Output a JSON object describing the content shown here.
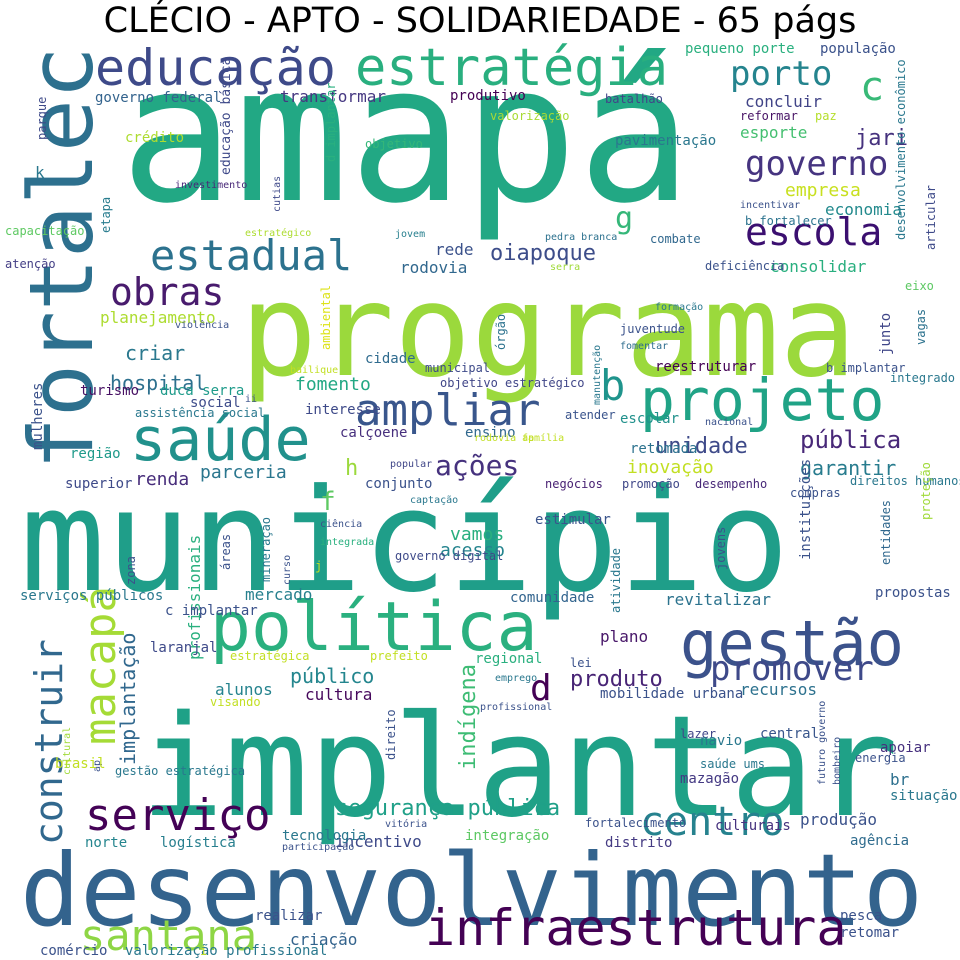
{
  "title": "CLÉCIO - APTO - SOLIDARIEDADE - 65 págs",
  "palette": [
    "#440154",
    "#46327e",
    "#365c8d",
    "#277f8e",
    "#1fa187",
    "#4ac16d",
    "#a0da39",
    "#fde725"
  ],
  "words": [
    {
      "text": "amapá",
      "c": "#22a884"
    },
    {
      "text": "município",
      "c": "#1f9e89"
    },
    {
      "text": "implantar",
      "c": "#1fa187"
    },
    {
      "text": "programa",
      "c": "#9bd93c"
    },
    {
      "text": "desenvolvimento",
      "c": "#33638d"
    },
    {
      "text": "fortalecer",
      "c": "#2d708e"
    },
    {
      "text": "política",
      "c": "#2ab07f"
    },
    {
      "text": "gestão",
      "c": "#3b528b"
    },
    {
      "text": "projeto",
      "c": "#20a386"
    },
    {
      "text": "saúde",
      "c": "#21918c"
    },
    {
      "text": "educação",
      "c": "#3e4a89"
    },
    {
      "text": "estratégia",
      "c": "#29af7f"
    },
    {
      "text": "infraestrutura",
      "c": "#440154"
    },
    {
      "text": "ampliar",
      "c": "#39568c"
    },
    {
      "text": "estadual",
      "c": "#2c728e"
    },
    {
      "text": "escola",
      "c": "#3b0f70"
    },
    {
      "text": "macapá",
      "c": "#a5db36"
    },
    {
      "text": "serviço",
      "c": "#440256"
    },
    {
      "text": "santana",
      "c": "#8ed645"
    },
    {
      "text": "centro",
      "c": "#26828e"
    },
    {
      "text": "construir",
      "c": "#31688e"
    },
    {
      "text": "promover",
      "c": "#3e4989"
    },
    {
      "text": "obras",
      "c": "#481b6d"
    },
    {
      "text": "governo",
      "c": "#463480"
    },
    {
      "text": "porto",
      "c": "#25848e"
    },
    {
      "text": "c",
      "c": "#38b977"
    },
    {
      "text": "b",
      "c": "#1f948c"
    },
    {
      "text": "g",
      "c": "#35b779"
    },
    {
      "text": "d",
      "c": "#440154"
    },
    {
      "text": "f",
      "c": "#5ec962"
    },
    {
      "text": "h",
      "c": "#9bd93c"
    },
    {
      "text": "ações",
      "c": "#46327e"
    },
    {
      "text": "pública",
      "c": "#482878"
    },
    {
      "text": "segurança pública",
      "c": "#1fa088"
    },
    {
      "text": "oiapoque",
      "c": "#3d4d8a"
    },
    {
      "text": "hospital",
      "c": "#2d708e"
    },
    {
      "text": "produto",
      "c": "#482475"
    },
    {
      "text": "público",
      "c": "#24868e"
    },
    {
      "text": "indígena",
      "c": "#3dbc74"
    },
    {
      "text": "implantação",
      "c": "#31688e"
    },
    {
      "text": "unidade",
      "c": "#3e4a89"
    },
    {
      "text": "inovação",
      "c": "#c2df23"
    },
    {
      "text": "garantir",
      "c": "#287c8e"
    },
    {
      "text": "parceria",
      "c": "#2a768e"
    },
    {
      "text": "criar",
      "c": "#2a788e"
    },
    {
      "text": "fomento",
      "c": "#22a884"
    },
    {
      "text": "empresa",
      "c": "#c8e020"
    },
    {
      "text": "jari",
      "c": "#46327e"
    },
    {
      "text": "esporte",
      "c": "#44bf70"
    },
    {
      "text": "concluir",
      "c": "#414487"
    },
    {
      "text": "economia",
      "c": "#238a8d"
    },
    {
      "text": "consolidar",
      "c": "#29af7f"
    },
    {
      "text": "rede",
      "c": "#3b528b"
    },
    {
      "text": "rodovia",
      "c": "#31688e"
    },
    {
      "text": "planejamento",
      "c": "#addc30"
    },
    {
      "text": "profissionais",
      "c": "#2ab07f"
    },
    {
      "text": "transformar",
      "c": "#453781"
    },
    {
      "text": "governo federal",
      "c": "#33638d"
    },
    {
      "text": "vamos",
      "c": "#29af7f"
    },
    {
      "text": "acesso",
      "c": "#25848e"
    },
    {
      "text": "renda",
      "c": "#472d7b"
    },
    {
      "text": "cultura",
      "c": "#46085c"
    },
    {
      "text": "alunos",
      "c": "#25838e"
    },
    {
      "text": "recursos",
      "c": "#2c718e"
    },
    {
      "text": "plano",
      "c": "#481769"
    },
    {
      "text": "produção",
      "c": "#3b528b"
    },
    {
      "text": "incentivo",
      "c": "#3e4a89"
    },
    {
      "text": "criação",
      "c": "#33638d"
    },
    {
      "text": "integração",
      "c": "#5cc863"
    },
    {
      "text": "culturais",
      "c": "#46327e"
    },
    {
      "text": "agência",
      "c": "#2f6c8e"
    },
    {
      "text": "mercado",
      "c": "#27808e"
    },
    {
      "text": "comunidade",
      "c": "#32648e"
    },
    {
      "text": "revitalizar",
      "c": "#2c738e"
    },
    {
      "text": "br",
      "c": "#2d708e"
    },
    {
      "text": "apoiar",
      "c": "#46307e"
    },
    {
      "text": "estimular",
      "c": "#3a548c"
    },
    {
      "text": "cidade",
      "c": "#2f6b8e"
    },
    {
      "text": "reestruturar",
      "c": "#440154"
    },
    {
      "text": "região",
      "c": "#1f9a8a"
    },
    {
      "text": "social",
      "c": "#3e4c8a"
    },
    {
      "text": "turismo",
      "c": "#471063"
    },
    {
      "text": "duca serra",
      "c": "#1e9b8a"
    },
    {
      "text": "mazagão",
      "c": "#443983"
    },
    {
      "text": "lazer",
      "c": "#404688"
    },
    {
      "text": "central",
      "c": "#39568c"
    },
    {
      "text": "logística",
      "c": "#277f8e"
    },
    {
      "text": "norte",
      "c": "#25858e"
    },
    {
      "text": "distrito",
      "c": "#443a83"
    },
    {
      "text": "calçoene",
      "c": "#472f7d"
    },
    {
      "text": "conjunto",
      "c": "#3b528b"
    },
    {
      "text": "superior",
      "c": "#3e4a89"
    },
    {
      "text": "negócios",
      "c": "#482173"
    },
    {
      "text": "promoção",
      "c": "#3f4788"
    },
    {
      "text": "desempenho",
      "c": "#482878"
    },
    {
      "text": "ensino",
      "c": "#31688e"
    },
    {
      "text": "escolar",
      "c": "#21918c"
    },
    {
      "text": "retomada",
      "c": "#2c728e"
    },
    {
      "text": "atender",
      "c": "#3a548c"
    },
    {
      "text": "assistência social",
      "c": "#2a788e"
    },
    {
      "text": "mulheres",
      "c": "#3b528b"
    },
    {
      "text": "atenção",
      "c": "#433e85"
    },
    {
      "text": "capacitação",
      "c": "#5ec962"
    },
    {
      "text": "parque",
      "c": "#3e4a89"
    },
    {
      "text": "crédito",
      "c": "#addc30"
    },
    {
      "text": "educação básica",
      "c": "#3e4989"
    },
    {
      "text": "etapa",
      "c": "#287c8e"
    },
    {
      "text": "investimento",
      "c": "#482878"
    },
    {
      "text": "pequeno porte",
      "c": "#2ab07f"
    },
    {
      "text": "população",
      "c": "#3b528b"
    },
    {
      "text": "produtivo",
      "c": "#440154"
    },
    {
      "text": "batalhão",
      "c": "#404588"
    },
    {
      "text": "reformar",
      "c": "#471365"
    },
    {
      "text": "paz",
      "c": "#b5de2b"
    },
    {
      "text": "valorização",
      "c": "#a8db34"
    },
    {
      "text": "objetivo",
      "c": "#35b779"
    },
    {
      "text": "d implantar",
      "c": "#2ab07f"
    },
    {
      "text": "pavimentação",
      "c": "#2a778e"
    },
    {
      "text": "cutias",
      "c": "#3e4989"
    },
    {
      "text": "estratégico",
      "c": "#addc30"
    },
    {
      "text": "jovem",
      "c": "#277f8e"
    },
    {
      "text": "pedra branca",
      "c": "#2c718e"
    },
    {
      "text": "incentivar",
      "c": "#3b528b"
    },
    {
      "text": "b fortalecer",
      "c": "#2c738e"
    },
    {
      "text": "combate",
      "c": "#31688e"
    },
    {
      "text": "deficiência",
      "c": "#3b528b"
    },
    {
      "text": "eixo",
      "c": "#5cc863"
    },
    {
      "text": "desenvolvimento econômico",
      "c": "#2a788e"
    },
    {
      "text": "articular",
      "c": "#3e4a89"
    },
    {
      "text": "vagas",
      "c": "#2c728e"
    },
    {
      "text": "serra",
      "c": "#a0da39"
    },
    {
      "text": "formação",
      "c": "#2a788e"
    },
    {
      "text": "juventude",
      "c": "#3b528b"
    },
    {
      "text": "fomentar",
      "c": "#2e6d8e"
    },
    {
      "text": "junto",
      "c": "#404688"
    },
    {
      "text": "órgão",
      "c": "#2c728e"
    },
    {
      "text": "integrado",
      "c": "#2a788e"
    },
    {
      "text": "b implantar",
      "c": "#3b528b"
    },
    {
      "text": "ambiental",
      "c": "#dde318"
    },
    {
      "text": "violência",
      "c": "#3b528b"
    },
    {
      "text": "bailique",
      "c": "#c2df23"
    },
    {
      "text": "municipal",
      "c": "#3e4a89"
    },
    {
      "text": "objetivo estratégico",
      "c": "#404688"
    },
    {
      "text": "manutenção",
      "c": "#2a788e"
    },
    {
      "text": "nacional",
      "c": "#3b528b"
    },
    {
      "text": "popular",
      "c": "#404688"
    },
    {
      "text": "rodovia ap",
      "c": "#c2df23"
    },
    {
      "text": "família",
      "c": "#c2df23"
    },
    {
      "text": "compras",
      "c": "#3b528b"
    },
    {
      "text": "direitos humanos",
      "c": "#2a788e"
    },
    {
      "text": "proteção",
      "c": "#a0da39"
    },
    {
      "text": "entidades",
      "c": "#31688e"
    },
    {
      "text": "ii",
      "c": "#3b528b"
    },
    {
      "text": "interesse",
      "c": "#3e4a89"
    },
    {
      "text": "captação",
      "c": "#2a788e"
    },
    {
      "text": "ciência",
      "c": "#3b528b"
    },
    {
      "text": "integrada",
      "c": "#2ab07f"
    },
    {
      "text": "áreas",
      "c": "#3b528b"
    },
    {
      "text": "mineração",
      "c": "#2a788e"
    },
    {
      "text": "curso",
      "c": "#3b528b"
    },
    {
      "text": "j",
      "c": "#c2df23"
    },
    {
      "text": "governo digital",
      "c": "#3e4a89"
    },
    {
      "text": "atividade",
      "c": "#2a788e"
    },
    {
      "text": "jovens",
      "c": "#3b528b"
    },
    {
      "text": "instituições",
      "c": "#3b528b"
    },
    {
      "text": "serviços públicos",
      "c": "#2a788e"
    },
    {
      "text": "ap",
      "c": "#3b528b"
    },
    {
      "text": "c implantar",
      "c": "#3b528b"
    },
    {
      "text": "laranjal",
      "c": "#3e4a89"
    },
    {
      "text": "propostas",
      "c": "#3b528b"
    },
    {
      "text": "estratégica",
      "c": "#c2df23"
    },
    {
      "text": "prefeito",
      "c": "#c2df23"
    },
    {
      "text": "regional",
      "c": "#2ab07f"
    },
    {
      "text": "lei",
      "c": "#3b528b"
    },
    {
      "text": "emprego",
      "c": "#2a788e"
    },
    {
      "text": "mobilidade urbana",
      "c": "#3b528b"
    },
    {
      "text": "profissional",
      "c": "#3b528b"
    },
    {
      "text": "visando",
      "c": "#c2df23"
    },
    {
      "text": "direito",
      "c": "#3b528b"
    },
    {
      "text": "navio",
      "c": "#2a788e"
    },
    {
      "text": "saúde ums",
      "c": "#2a788e"
    },
    {
      "text": "futuro governo",
      "c": "#3b528b"
    },
    {
      "text": "bombeiro",
      "c": "#3b528b"
    },
    {
      "text": "energia",
      "c": "#3b528b"
    },
    {
      "text": "situação",
      "c": "#2a788e"
    },
    {
      "text": "brasil",
      "c": "#c2df23"
    },
    {
      "text": "gestão estratégica",
      "c": "#2a788e"
    },
    {
      "text": "cultural",
      "c": "#a0da39"
    },
    {
      "text": "zona",
      "c": "#3b528b"
    },
    {
      "text": "tecnologia",
      "c": "#2a788e"
    },
    {
      "text": "participação",
      "c": "#3b528b"
    },
    {
      "text": "vitória",
      "c": "#3b528b"
    },
    {
      "text": "fortalecimento",
      "c": "#3b528b"
    },
    {
      "text": "realizar",
      "c": "#3b528b"
    },
    {
      "text": "pesca",
      "c": "#3b528b"
    },
    {
      "text": "retomar",
      "c": "#3b528b"
    },
    {
      "text": "comércio",
      "c": "#3b528b"
    },
    {
      "text": "valorização profissional",
      "c": "#2a788e"
    },
    {
      "text": "i",
      "c": "#c2df23"
    },
    {
      "text": "k",
      "c": "#2a788e"
    }
  ]
}
